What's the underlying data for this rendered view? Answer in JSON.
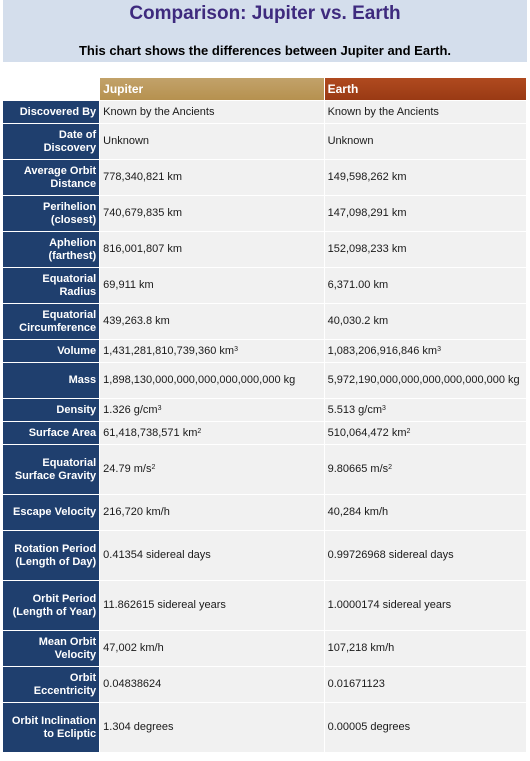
{
  "header": {
    "title": "Comparison: Jupiter vs. Earth",
    "subtitle": "This chart shows the differences between Jupiter and Earth."
  },
  "columns": {
    "jupiter": "Jupiter",
    "earth": "Earth"
  },
  "rows": [
    {
      "label": "Discovered By",
      "jupiter": "Known by the Ancients",
      "earth": "Known by the Ancients"
    },
    {
      "label": "Date of Discovery",
      "jupiter": "Unknown",
      "earth": "Unknown"
    },
    {
      "label": "Average Orbit Distance",
      "jupiter": "778,340,821 km",
      "earth": "149,598,262 km"
    },
    {
      "label": "Perihelion (closest)",
      "jupiter": "740,679,835 km",
      "earth": "147,098,291 km"
    },
    {
      "label": "Aphelion (farthest)",
      "jupiter": "816,001,807 km",
      "earth": "152,098,233 km"
    },
    {
      "label": "Equatorial Radius",
      "jupiter": "69,911 km",
      "earth": "6,371.00 km"
    },
    {
      "label": "Equatorial Circumference",
      "jupiter": "439,263.8 km",
      "earth": "40,030.2 km"
    },
    {
      "label": "Volume",
      "jupiter": "1,431,281,810,739,360 km",
      "earth": "1,083,206,916,846 km",
      "sup": "3"
    },
    {
      "label": "Mass",
      "jupiter": "1,898,130,000,000,000,000,000,000 kg",
      "earth": "5,972,190,000,000,000,000,000,000 kg"
    },
    {
      "label": "Density",
      "jupiter": "1.326 g/cm",
      "earth": "5.513 g/cm",
      "sup": "3"
    },
    {
      "label": "Surface Area",
      "jupiter": "61,418,738,571 km",
      "earth": "510,064,472 km",
      "sup": "2"
    },
    {
      "label": "Equatorial Surface Gravity",
      "jupiter": "24.79 m/s",
      "earth": "9.80665 m/s",
      "sup": "2"
    },
    {
      "label": "Escape Velocity",
      "jupiter": "216,720 km/h",
      "earth": "40,284 km/h"
    },
    {
      "label": "Rotation Period (Length of Day)",
      "jupiter": "0.41354 sidereal days",
      "earth": "0.99726968 sidereal days"
    },
    {
      "label": "Orbit Period (Length of Year)",
      "jupiter": "11.862615 sidereal years",
      "earth": "1.0000174 sidereal years"
    },
    {
      "label": "Mean Orbit Velocity",
      "jupiter": "47,002 km/h",
      "earth": "107,218 km/h"
    },
    {
      "label": "Orbit Eccentricity",
      "jupiter": "0.04838624",
      "earth": "0.01671123"
    },
    {
      "label": "Orbit Inclination to Ecliptic",
      "jupiter": "1.304 degrees",
      "earth": "0.00005 degrees"
    }
  ],
  "colors": {
    "header_bg": "#d4deec",
    "title": "#3e2a7e",
    "label_bg": "#1f3f6e",
    "jupiter_header": "#b6914f",
    "earth_header": "#9a3a14",
    "cell_bg": "#f1f1f1"
  }
}
